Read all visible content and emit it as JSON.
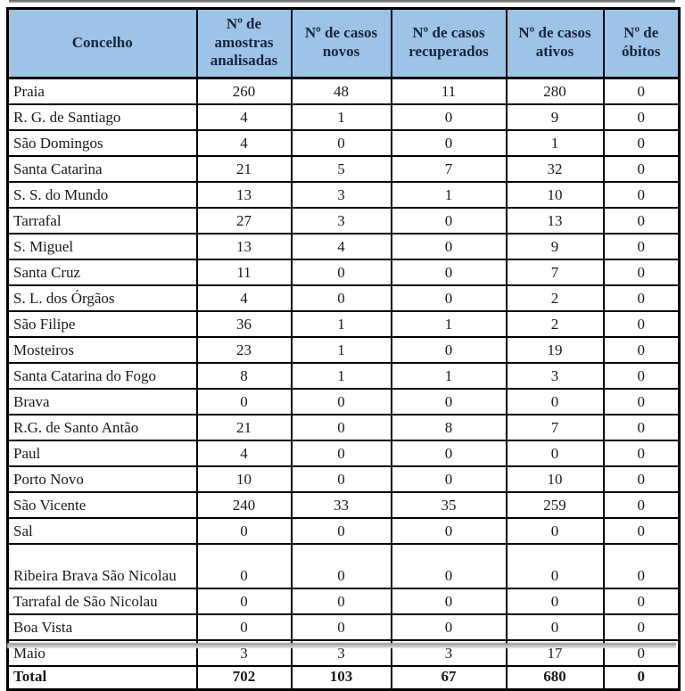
{
  "colors": {
    "header_bg": "#9DC3E6",
    "border": "#000000",
    "header_text": "#17253B",
    "body_text": "#1A1A1A"
  },
  "table": {
    "headers": [
      "Concelho",
      "Nº de amostras analisadas",
      "Nº de casos novos",
      "Nº de casos recuperados",
      "Nº de casos ativos",
      "Nº de óbitos"
    ],
    "rows": [
      {
        "concelho": "Praia",
        "values": [
          "260",
          "48",
          "11",
          "280",
          "0"
        ]
      },
      {
        "concelho": "R. G. de Santiago",
        "values": [
          "4",
          "1",
          "0",
          "9",
          "0"
        ]
      },
      {
        "concelho": "São Domingos",
        "values": [
          "4",
          "0",
          "0",
          "1",
          "0"
        ]
      },
      {
        "concelho": "Santa Catarina",
        "values": [
          "21",
          "5",
          "7",
          "32",
          "0"
        ]
      },
      {
        "concelho": "S. S. do Mundo",
        "values": [
          "13",
          "3",
          "1",
          "10",
          "0"
        ]
      },
      {
        "concelho": "Tarrafal",
        "values": [
          "27",
          "3",
          "0",
          "13",
          "0"
        ]
      },
      {
        "concelho": "S. Miguel",
        "values": [
          "13",
          "4",
          "0",
          "9",
          "0"
        ]
      },
      {
        "concelho": "Santa Cruz",
        "values": [
          "11",
          "0",
          "0",
          "7",
          "0"
        ]
      },
      {
        "concelho": "S. L. dos Órgãos",
        "values": [
          "4",
          "0",
          "0",
          "2",
          "0"
        ]
      },
      {
        "concelho": "São Filipe",
        "values": [
          "36",
          "1",
          "1",
          "2",
          "0"
        ]
      },
      {
        "concelho": "Mosteiros",
        "values": [
          "23",
          "1",
          "0",
          "19",
          "0"
        ]
      },
      {
        "concelho": "Santa Catarina do Fogo",
        "values": [
          "8",
          "1",
          "1",
          "3",
          "0"
        ]
      },
      {
        "concelho": "Brava",
        "values": [
          "0",
          "0",
          "0",
          "0",
          "0"
        ]
      },
      {
        "concelho": "R.G. de Santo Antão",
        "values": [
          "21",
          "0",
          "8",
          "7",
          "0"
        ]
      },
      {
        "concelho": "Paul",
        "values": [
          "4",
          "0",
          "0",
          "0",
          "0"
        ]
      },
      {
        "concelho": "Porto Novo",
        "values": [
          "10",
          "0",
          "0",
          "10",
          "0"
        ]
      },
      {
        "concelho": "São Vicente",
        "values": [
          "240",
          "33",
          "35",
          "259",
          "0"
        ]
      },
      {
        "concelho": "Sal",
        "values": [
          "0",
          "0",
          "0",
          "0",
          "0"
        ]
      },
      {
        "concelho": "Ribeira Brava São Nicolau",
        "values": [
          "0",
          "0",
          "0",
          "0",
          "0"
        ],
        "tall": true
      },
      {
        "concelho": "Tarrafal de São Nicolau",
        "values": [
          "0",
          "0",
          "0",
          "0",
          "0"
        ]
      },
      {
        "concelho": "Boa Vista",
        "values": [
          "0",
          "0",
          "0",
          "0",
          "0"
        ]
      },
      {
        "concelho": "Maio",
        "values": [
          "3",
          "3",
          "3",
          "17",
          "0"
        ]
      }
    ],
    "total": {
      "label": "Total",
      "values": [
        "702",
        "103",
        "67",
        "680",
        "0"
      ]
    }
  }
}
